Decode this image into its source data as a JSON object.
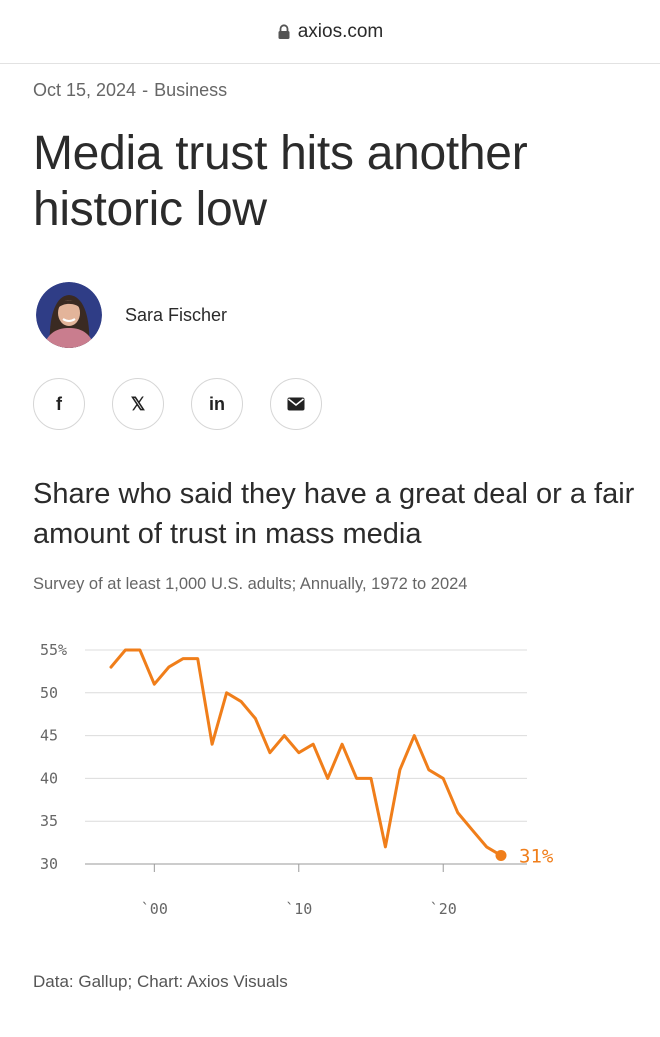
{
  "browser": {
    "domain": "axios.com"
  },
  "article": {
    "date": "Oct 15, 2024",
    "separator": "-",
    "section": "Business",
    "headline": "Media trust hits another historic low",
    "author": "Sara Fischer"
  },
  "share": {
    "facebook": "f",
    "x": "𝕏",
    "linkedin": "in"
  },
  "chart": {
    "title": "Share who said they have a great deal or a fair amount of trust in mass media",
    "subtitle": "Survey of at least 1,000 U.S. adults; Annually, 1972 to 2024",
    "source": "Data: Gallup; Chart: Axios Visuals",
    "accent": "#f07e1a"
  },
  "chart_data": {
    "type": "line",
    "x": [
      1997,
      1998,
      1999,
      2000,
      2001,
      2002,
      2003,
      2004,
      2005,
      2006,
      2007,
      2008,
      2009,
      2010,
      2011,
      2012,
      2013,
      2014,
      2015,
      2016,
      2017,
      2018,
      2019,
      2020,
      2021,
      2022,
      2023,
      2024
    ],
    "series": [
      {
        "values": [
          53,
          55,
          55,
          51,
          53,
          54,
          54,
          44,
          50,
          49,
          47,
          43,
          45,
          43,
          44,
          40,
          44,
          40,
          40,
          32,
          41,
          45,
          41,
          40,
          36,
          34,
          32,
          31
        ]
      }
    ],
    "ylim": [
      30,
      55
    ],
    "yticks": [
      "55%",
      "50",
      "45",
      "40",
      "35",
      "30"
    ],
    "ytick_values": [
      55,
      50,
      45,
      40,
      35,
      30
    ],
    "xtick_labels": [
      "`00",
      "`10",
      "`20"
    ],
    "xtick_values": [
      2000,
      2010,
      2020
    ],
    "end_label": "31%",
    "grid": true,
    "color": "#f07e1a"
  }
}
